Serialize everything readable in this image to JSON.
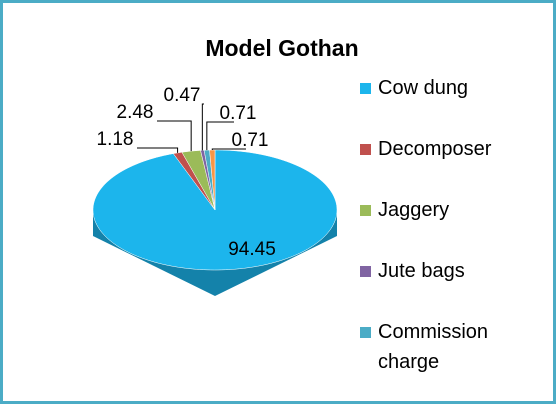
{
  "chart_data": {
    "type": "pie",
    "title": "Model Gothan",
    "categories": [
      "Cow dung",
      "Decomposer",
      "Jaggery",
      "Jute bags",
      "Commission charge",
      null
    ],
    "values": [
      94.45,
      1.18,
      2.48,
      0.47,
      0.71,
      0.71
    ],
    "colors": [
      "#1cb5ec",
      "#c0504d",
      "#9bbb59",
      "#8064a2",
      "#4bacc6",
      "#f79646"
    ]
  }
}
